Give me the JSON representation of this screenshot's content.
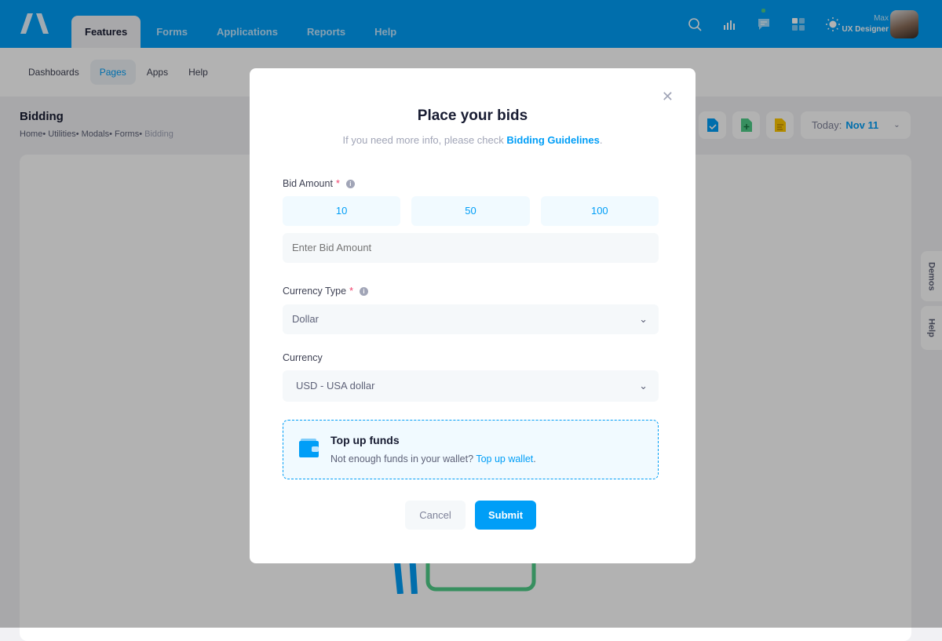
{
  "header": {
    "nav": [
      "Features",
      "Forms",
      "Applications",
      "Reports",
      "Help"
    ],
    "active_nav": "Features",
    "user": {
      "name": "Max",
      "role": "UX Designer"
    },
    "icons": [
      "search-icon",
      "chart-bars-icon",
      "chat-icon",
      "grid-icon",
      "sun-icon"
    ]
  },
  "subnav": {
    "items": [
      "Dashboards",
      "Pages",
      "Apps",
      "Help"
    ],
    "active": "Pages"
  },
  "page": {
    "title": "Bidding",
    "breadcrumb": [
      "Home",
      "Utilities",
      "Modals",
      "Forms",
      "Bidding"
    ],
    "date_label": "Today:",
    "date_value": "Nov 11"
  },
  "side_tabs": [
    "Demos",
    "Help"
  ],
  "modal": {
    "title": "Place your bids",
    "subtitle": "If you need more info, please check",
    "subtitle_link": "Bidding Guidelines",
    "subtitle_end": ".",
    "bid_label": "Bid Amount",
    "amounts": [
      "10",
      "50",
      "100"
    ],
    "bid_placeholder": "Enter Bid Amount",
    "currency_type_label": "Currency Type",
    "currency_type_value": "Dollar",
    "currency_label": "Currency",
    "currency_value": "USD - USA dollar",
    "notice_title": "Top up funds",
    "notice_text": "Not enough funds in your wallet?",
    "notice_link": "Top up wallet",
    "notice_end": ".",
    "cancel": "Cancel",
    "submit": "Submit",
    "required_mark": "*",
    "info_mark": "i"
  },
  "colors": {
    "primary": "#009ef7",
    "danger": "#f1416c",
    "light_primary": "#f1faff"
  }
}
